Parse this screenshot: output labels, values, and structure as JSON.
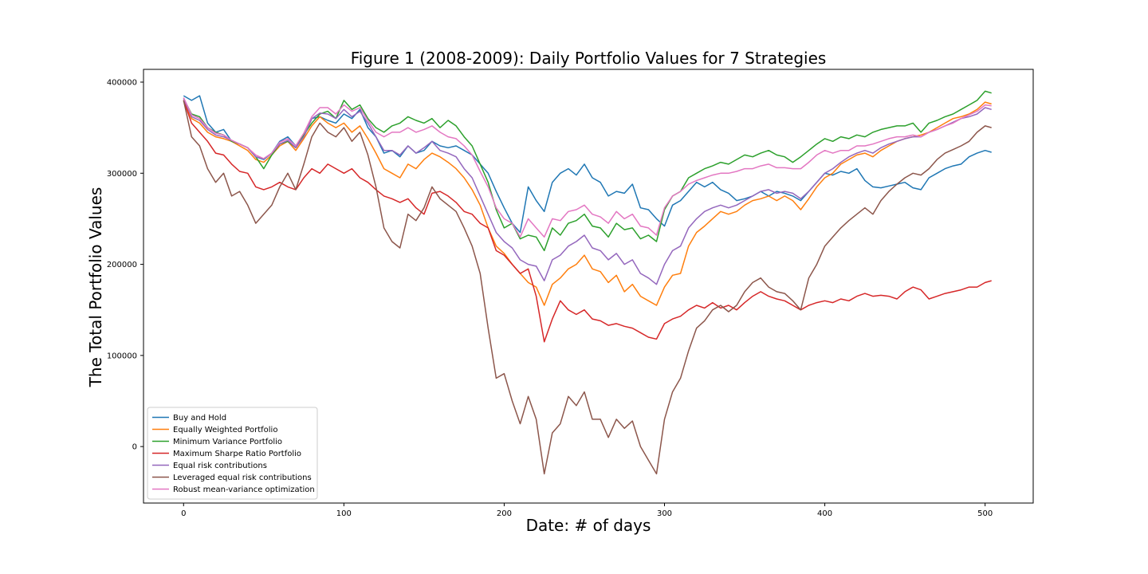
{
  "chart_data": {
    "type": "line",
    "title": "Figure 1 (2008-2009): Daily Portfolio Values for 7 Strategies",
    "xlabel": "Date: # of days",
    "ylabel": "The Total Portfolio Values",
    "xlim": [
      -25,
      530
    ],
    "ylim": [
      -62000,
      414000
    ],
    "xticks": [
      0,
      100,
      200,
      300,
      400,
      500
    ],
    "yticks": [
      0,
      100000,
      200000,
      300000,
      400000
    ],
    "grid": false,
    "legend_position": "lower-left",
    "x": [
      0,
      5,
      10,
      15,
      20,
      25,
      30,
      35,
      40,
      45,
      50,
      55,
      60,
      65,
      70,
      75,
      80,
      85,
      90,
      95,
      100,
      105,
      110,
      115,
      120,
      125,
      130,
      135,
      140,
      145,
      150,
      155,
      160,
      165,
      170,
      175,
      180,
      185,
      190,
      195,
      200,
      205,
      210,
      215,
      220,
      225,
      230,
      235,
      240,
      245,
      250,
      255,
      260,
      265,
      270,
      275,
      280,
      285,
      290,
      295,
      300,
      305,
      310,
      315,
      320,
      325,
      330,
      335,
      340,
      345,
      350,
      355,
      360,
      365,
      370,
      375,
      380,
      385,
      390,
      395,
      400,
      405,
      410,
      415,
      420,
      425,
      430,
      435,
      440,
      445,
      450,
      455,
      460,
      465,
      470,
      475,
      480,
      485,
      490,
      495,
      500,
      504
    ],
    "series": [
      {
        "name": "Buy and Hold",
        "color": "#1f77b4",
        "values": [
          385000,
          380000,
          385000,
          355000,
          345000,
          348000,
          335000,
          332000,
          328000,
          318000,
          315000,
          322000,
          335000,
          340000,
          330000,
          340000,
          360000,
          362000,
          358000,
          355000,
          365000,
          360000,
          370000,
          350000,
          340000,
          322000,
          325000,
          318000,
          330000,
          322000,
          325000,
          335000,
          330000,
          328000,
          330000,
          325000,
          320000,
          310000,
          300000,
          280000,
          262000,
          245000,
          235000,
          285000,
          270000,
          258000,
          290000,
          300000,
          305000,
          298000,
          310000,
          295000,
          290000,
          275000,
          280000,
          278000,
          288000,
          262000,
          260000,
          250000,
          242000,
          265000,
          270000,
          280000,
          290000,
          285000,
          290000,
          282000,
          278000,
          270000,
          272000,
          275000,
          280000,
          275000,
          280000,
          278000,
          275000,
          270000,
          280000,
          290000,
          300000,
          298000,
          302000,
          300000,
          305000,
          292000,
          285000,
          284000,
          286000,
          288000,
          290000,
          284000,
          282000,
          295000,
          300000,
          305000,
          308000,
          310000,
          318000,
          322000,
          325000,
          323000
        ]
      },
      {
        "name": "Equally Weighted Portfolio",
        "color": "#ff7f0e",
        "values": [
          380000,
          360000,
          355000,
          345000,
          340000,
          338000,
          335000,
          330000,
          325000,
          315000,
          312000,
          320000,
          330000,
          335000,
          325000,
          338000,
          352000,
          362000,
          355000,
          350000,
          355000,
          345000,
          352000,
          338000,
          322000,
          305000,
          300000,
          295000,
          310000,
          305000,
          315000,
          322000,
          318000,
          312000,
          305000,
          295000,
          282000,
          265000,
          240000,
          220000,
          212000,
          200000,
          190000,
          180000,
          175000,
          155000,
          178000,
          185000,
          195000,
          200000,
          210000,
          195000,
          192000,
          180000,
          188000,
          170000,
          178000,
          165000,
          160000,
          155000,
          175000,
          188000,
          190000,
          220000,
          235000,
          242000,
          250000,
          258000,
          255000,
          258000,
          265000,
          270000,
          272000,
          275000,
          270000,
          275000,
          270000,
          260000,
          272000,
          285000,
          295000,
          300000,
          310000,
          315000,
          320000,
          322000,
          318000,
          325000,
          330000,
          335000,
          338000,
          340000,
          342000,
          345000,
          350000,
          355000,
          360000,
          362000,
          365000,
          370000,
          378000,
          376000
        ]
      },
      {
        "name": "Minimum Variance Portfolio",
        "color": "#2ca02c",
        "values": [
          382000,
          365000,
          362000,
          350000,
          345000,
          342000,
          335000,
          332000,
          328000,
          318000,
          305000,
          320000,
          332000,
          335000,
          328000,
          342000,
          355000,
          365000,
          368000,
          360000,
          380000,
          370000,
          375000,
          360000,
          350000,
          345000,
          352000,
          355000,
          362000,
          358000,
          355000,
          360000,
          350000,
          358000,
          352000,
          340000,
          330000,
          310000,
          290000,
          260000,
          240000,
          245000,
          228000,
          232000,
          230000,
          215000,
          240000,
          232000,
          245000,
          248000,
          255000,
          242000,
          240000,
          230000,
          245000,
          238000,
          240000,
          228000,
          232000,
          225000,
          260000,
          275000,
          280000,
          295000,
          300000,
          305000,
          308000,
          312000,
          310000,
          315000,
          320000,
          318000,
          322000,
          325000,
          320000,
          318000,
          312000,
          318000,
          325000,
          332000,
          338000,
          335000,
          340000,
          338000,
          342000,
          340000,
          345000,
          348000,
          350000,
          352000,
          352000,
          355000,
          345000,
          355000,
          358000,
          362000,
          365000,
          370000,
          375000,
          380000,
          390000,
          388000
        ]
      },
      {
        "name": "Maximum Sharpe Ratio Portfolio",
        "color": "#d62728",
        "values": [
          380000,
          355000,
          345000,
          335000,
          322000,
          320000,
          310000,
          302000,
          300000,
          285000,
          282000,
          285000,
          290000,
          285000,
          282000,
          295000,
          305000,
          300000,
          310000,
          305000,
          300000,
          305000,
          295000,
          290000,
          282000,
          275000,
          272000,
          268000,
          272000,
          262000,
          255000,
          278000,
          280000,
          275000,
          268000,
          258000,
          255000,
          245000,
          240000,
          215000,
          210000,
          200000,
          190000,
          195000,
          165000,
          115000,
          140000,
          160000,
          150000,
          145000,
          150000,
          140000,
          138000,
          133000,
          135000,
          132000,
          130000,
          125000,
          120000,
          118000,
          135000,
          140000,
          143000,
          150000,
          155000,
          152000,
          158000,
          152000,
          155000,
          150000,
          158000,
          165000,
          170000,
          165000,
          162000,
          160000,
          155000,
          150000,
          155000,
          158000,
          160000,
          158000,
          162000,
          160000,
          165000,
          168000,
          165000,
          166000,
          165000,
          162000,
          170000,
          175000,
          172000,
          162000,
          165000,
          168000,
          170000,
          172000,
          175000,
          175000,
          180000,
          182000
        ]
      },
      {
        "name": "Equal risk contributions",
        "color": "#9467bd",
        "values": [
          382000,
          362000,
          358000,
          348000,
          342000,
          340000,
          336000,
          332000,
          328000,
          318000,
          316000,
          322000,
          332000,
          336000,
          328000,
          340000,
          360000,
          366000,
          365000,
          360000,
          370000,
          362000,
          368000,
          355000,
          340000,
          325000,
          325000,
          320000,
          330000,
          322000,
          328000,
          335000,
          325000,
          322000,
          318000,
          305000,
          295000,
          275000,
          255000,
          235000,
          225000,
          218000,
          205000,
          200000,
          198000,
          182000,
          205000,
          210000,
          220000,
          225000,
          232000,
          218000,
          215000,
          205000,
          212000,
          200000,
          205000,
          190000,
          185000,
          178000,
          200000,
          215000,
          220000,
          240000,
          250000,
          258000,
          262000,
          265000,
          262000,
          265000,
          270000,
          275000,
          280000,
          282000,
          278000,
          280000,
          278000,
          272000,
          280000,
          290000,
          300000,
          305000,
          312000,
          318000,
          322000,
          325000,
          322000,
          328000,
          332000,
          335000,
          338000,
          340000,
          340000,
          345000,
          348000,
          352000,
          356000,
          360000,
          362000,
          365000,
          372000,
          370000
        ]
      },
      {
        "name": "Leveraged equal risk contributions",
        "color": "#8c564b",
        "values": [
          380000,
          340000,
          330000,
          305000,
          290000,
          300000,
          275000,
          280000,
          265000,
          245000,
          255000,
          265000,
          285000,
          300000,
          282000,
          310000,
          340000,
          355000,
          345000,
          340000,
          350000,
          335000,
          345000,
          320000,
          285000,
          240000,
          225000,
          218000,
          255000,
          248000,
          262000,
          285000,
          272000,
          265000,
          258000,
          240000,
          220000,
          190000,
          130000,
          75000,
          80000,
          50000,
          25000,
          55000,
          30000,
          -30000,
          15000,
          25000,
          55000,
          45000,
          60000,
          30000,
          30000,
          10000,
          30000,
          20000,
          28000,
          0,
          -15000,
          -30000,
          30000,
          60000,
          75000,
          105000,
          130000,
          138000,
          150000,
          155000,
          148000,
          155000,
          170000,
          180000,
          185000,
          175000,
          170000,
          168000,
          160000,
          150000,
          185000,
          200000,
          220000,
          230000,
          240000,
          248000,
          255000,
          262000,
          255000,
          270000,
          280000,
          288000,
          295000,
          300000,
          298000,
          305000,
          315000,
          322000,
          326000,
          330000,
          335000,
          345000,
          352000,
          350000
        ]
      },
      {
        "name": "Robust mean-variance optimization",
        "color": "#e377c2",
        "values": [
          383000,
          364000,
          360000,
          350000,
          344000,
          342000,
          336000,
          332000,
          328000,
          320000,
          316000,
          322000,
          334000,
          338000,
          330000,
          344000,
          362000,
          372000,
          372000,
          365000,
          375000,
          368000,
          372000,
          358000,
          345000,
          340000,
          345000,
          345000,
          350000,
          345000,
          348000,
          352000,
          345000,
          340000,
          338000,
          330000,
          320000,
          302000,
          285000,
          262000,
          250000,
          245000,
          230000,
          250000,
          240000,
          230000,
          250000,
          248000,
          258000,
          260000,
          265000,
          255000,
          252000,
          245000,
          258000,
          250000,
          255000,
          242000,
          240000,
          232000,
          262000,
          275000,
          280000,
          288000,
          292000,
          295000,
          298000,
          300000,
          300000,
          302000,
          305000,
          305000,
          308000,
          310000,
          306000,
          306000,
          305000,
          305000,
          312000,
          320000,
          325000,
          322000,
          325000,
          325000,
          330000,
          330000,
          332000,
          335000,
          338000,
          340000,
          340000,
          342000,
          340000,
          345000,
          348000,
          352000,
          355000,
          360000,
          364000,
          368000,
          375000,
          374000
        ]
      }
    ]
  }
}
